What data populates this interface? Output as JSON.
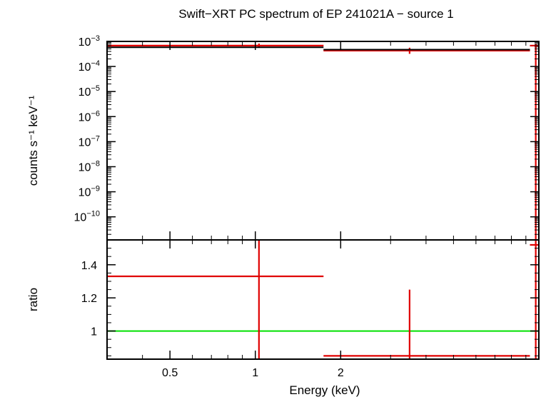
{
  "chart_data": {
    "type": "scatter",
    "title": "Swift−XRT PC spectrum of EP 241021A − source 1",
    "xlabel": "Energy (keV)",
    "xscale": "log",
    "xlim": [
      0.3,
      10.0
    ],
    "x_ticks": [
      {
        "value": 0.5,
        "label": "0.5"
      },
      {
        "value": 1,
        "label": "1"
      },
      {
        "value": 2,
        "label": "2"
      }
    ],
    "panels": [
      {
        "name": "spectrum",
        "ylabel": "counts s⁻¹ keV⁻¹",
        "yscale": "log",
        "ylim": [
          1.2e-11,
          0.001
        ],
        "y_ticks": [
          {
            "value": 0.001,
            "base": "10",
            "exp": "−3"
          },
          {
            "value": 0.0001,
            "base": "10",
            "exp": "−4"
          },
          {
            "value": 1e-05,
            "base": "10",
            "exp": "−5"
          },
          {
            "value": 1e-06,
            "base": "10",
            "exp": "−6"
          },
          {
            "value": 1e-07,
            "base": "10",
            "exp": "−7"
          },
          {
            "value": 1e-08,
            "base": "10",
            "exp": "−8"
          },
          {
            "value": 1e-09,
            "base": "10",
            "exp": "−9"
          },
          {
            "value": 1e-10,
            "base": "10",
            "exp": "−10"
          }
        ],
        "series": [
          {
            "name": "data",
            "color": "#e00000",
            "points": [
              {
                "x": 1.03,
                "xlo": 0.3,
                "xhi": 1.74,
                "y": 0.00068,
                "ylo": 0.00058,
                "yhi": 0.00082
              },
              {
                "x": 3.5,
                "xlo": 1.74,
                "xhi": 9.3,
                "y": 0.00043,
                "ylo": 0.00032,
                "yhi": 0.00056
              },
              {
                "x": 9.75,
                "xlo": 9.3,
                "xhi": 10.0,
                "y": 0.00068,
                "ylo": 1.2e-11,
                "yhi": 0.00082
              }
            ]
          },
          {
            "name": "model",
            "color": "#000000",
            "steps": [
              {
                "x0": 0.3,
                "x1": 1.74,
                "y": 0.00058
              },
              {
                "x0": 1.74,
                "x1": 9.3,
                "y": 0.00047
              }
            ]
          }
        ]
      },
      {
        "name": "ratio",
        "ylabel": "ratio",
        "yscale": "linear",
        "ylim": [
          0.83,
          1.55
        ],
        "y_ticks": [
          {
            "value": 1.0,
            "label": "1"
          },
          {
            "value": 1.2,
            "label": "1.2"
          },
          {
            "value": 1.4,
            "label": "1.4"
          }
        ],
        "reference_line": {
          "y": 1.0,
          "color": "#00e000"
        },
        "series": [
          {
            "name": "ratio",
            "color": "#e00000",
            "points": [
              {
                "x": 1.03,
                "xlo": 0.3,
                "xhi": 1.74,
                "y": 1.33,
                "ylo": 0.83,
                "yhi": 1.55
              },
              {
                "x": 3.5,
                "xlo": 1.74,
                "xhi": 9.3,
                "y": 0.85,
                "ylo": 0.83,
                "yhi": 1.25
              },
              {
                "x": 9.75,
                "xlo": 9.3,
                "xhi": 10.0,
                "y": 1.52,
                "ylo": 0.83,
                "yhi": 1.55
              }
            ]
          }
        ]
      }
    ]
  }
}
